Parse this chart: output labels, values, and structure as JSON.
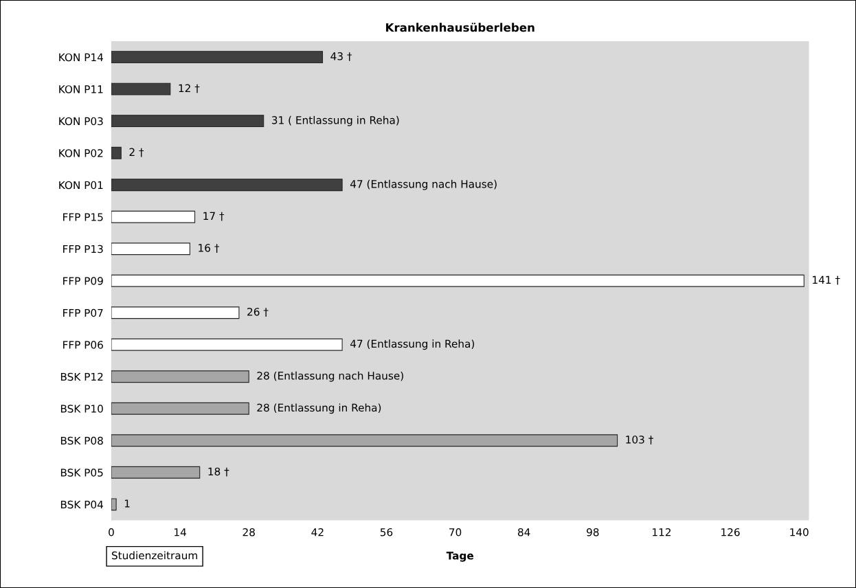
{
  "chart_data": {
    "type": "bar",
    "orientation": "horizontal",
    "title": "Krankenhausüberleben",
    "xlabel": "Tage",
    "categories": [
      "KON P14",
      "KON P11",
      "KON P03",
      "KON P02",
      "KON P01",
      "FFP P15",
      "FFP P13",
      "FFP P09",
      "FFP P07",
      "FFP P06",
      "BSK P12",
      "BSK P10",
      "BSK P08",
      "BSK P05",
      "BSK P04"
    ],
    "values": [
      43,
      12,
      31,
      2,
      47,
      17,
      16,
      141,
      26,
      47,
      28,
      28,
      103,
      18,
      1
    ],
    "colors": [
      "#404040",
      "#404040",
      "#404040",
      "#404040",
      "#404040",
      "#ffffff",
      "#ffffff",
      "#ffffff",
      "#ffffff",
      "#ffffff",
      "#a6a6a6",
      "#a6a6a6",
      "#a6a6a6",
      "#a6a6a6",
      "#a6a6a6"
    ],
    "value_labels": [
      "43 †",
      "12 †",
      "31 ( Entlassung in Reha)",
      "2 †",
      "47 (Entlassung nach Hause)",
      "17 †",
      "16 †",
      "141 †",
      "26 †",
      "47 (Entlassung in Reha)",
      "28 (Entlassung nach Hause)",
      "28 (Entlassung in Reha)",
      "103 †",
      "18 †",
      "1"
    ],
    "xlim": [
      0,
      142
    ],
    "xticks": [
      0,
      14,
      28,
      42,
      56,
      70,
      84,
      98,
      112,
      126,
      140
    ],
    "grid": false,
    "legend": false,
    "annotations": [
      "Studienzeitraum"
    ]
  }
}
